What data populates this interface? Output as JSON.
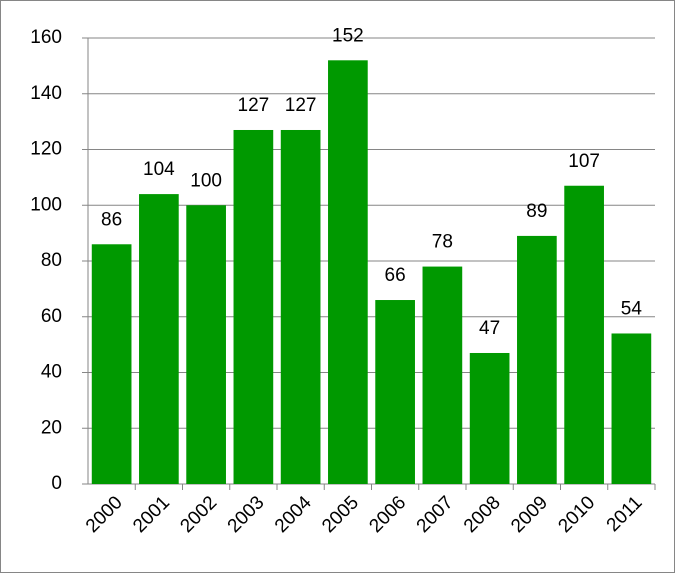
{
  "chart_data": {
    "type": "bar",
    "categories": [
      "2000",
      "2001",
      "2002",
      "2003",
      "2004",
      "2005",
      "2006",
      "2007",
      "2008",
      "2009",
      "2010",
      "2011"
    ],
    "values": [
      86,
      104,
      100,
      127,
      127,
      152,
      66,
      78,
      47,
      89,
      107,
      54
    ],
    "color": "#009900",
    "ylim": [
      0,
      160
    ],
    "yticks": [
      0,
      20,
      40,
      60,
      80,
      100,
      120,
      140,
      160
    ],
    "grid": true
  }
}
